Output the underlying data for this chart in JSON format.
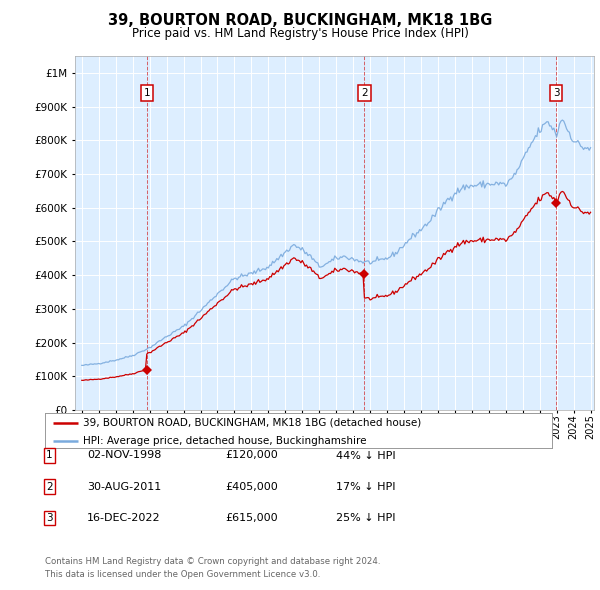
{
  "title": "39, BOURTON ROAD, BUCKINGHAM, MK18 1BG",
  "subtitle": "Price paid vs. HM Land Registry's House Price Index (HPI)",
  "sales": [
    {
      "num": 1,
      "date_str": "02-NOV-1998",
      "year": 1998.83,
      "price": 120000,
      "label": "44% ↓ HPI"
    },
    {
      "num": 2,
      "date_str": "30-AUG-2011",
      "year": 2011.66,
      "price": 405000,
      "label": "17% ↓ HPI"
    },
    {
      "num": 3,
      "date_str": "16-DEC-2022",
      "year": 2022.96,
      "price": 615000,
      "label": "25% ↓ HPI"
    }
  ],
  "legend_property": "39, BOURTON ROAD, BUCKINGHAM, MK18 1BG (detached house)",
  "legend_hpi": "HPI: Average price, detached house, Buckinghamshire",
  "footer1": "Contains HM Land Registry data © Crown copyright and database right 2024.",
  "footer2": "This data is licensed under the Open Government Licence v3.0.",
  "property_color": "#cc0000",
  "hpi_color": "#7aaadd",
  "background_color": "#ddeeff",
  "plot_bg": "#ffffff",
  "ylim": [
    0,
    1050000
  ],
  "xlim_start": 1994.6,
  "xlim_end": 2025.2
}
